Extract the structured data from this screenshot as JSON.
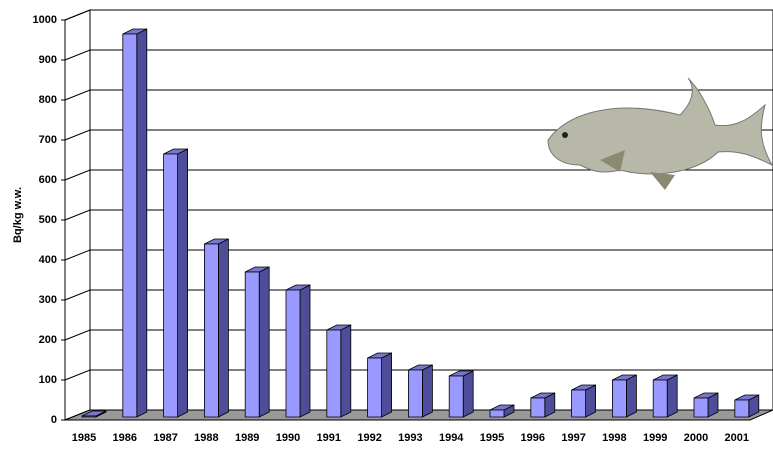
{
  "chart_data": {
    "type": "bar3d",
    "y_label": "Bq/kg w.w.",
    "categories": [
      "1985",
      "1986",
      "1987",
      "1988",
      "1989",
      "1990",
      "1991",
      "1992",
      "1993",
      "1994",
      "1995",
      "1996",
      "1997",
      "1998",
      "1999",
      "2000",
      "2001"
    ],
    "values": [
      10,
      965,
      665,
      440,
      370,
      325,
      225,
      155,
      125,
      110,
      25,
      55,
      75,
      100,
      100,
      55,
      50
    ],
    "color": "#9999ff",
    "ylim": [
      0,
      1000
    ],
    "yticks": [
      0,
      100,
      200,
      300,
      400,
      500,
      600,
      700,
      800,
      900,
      1000
    ],
    "grid": true
  }
}
